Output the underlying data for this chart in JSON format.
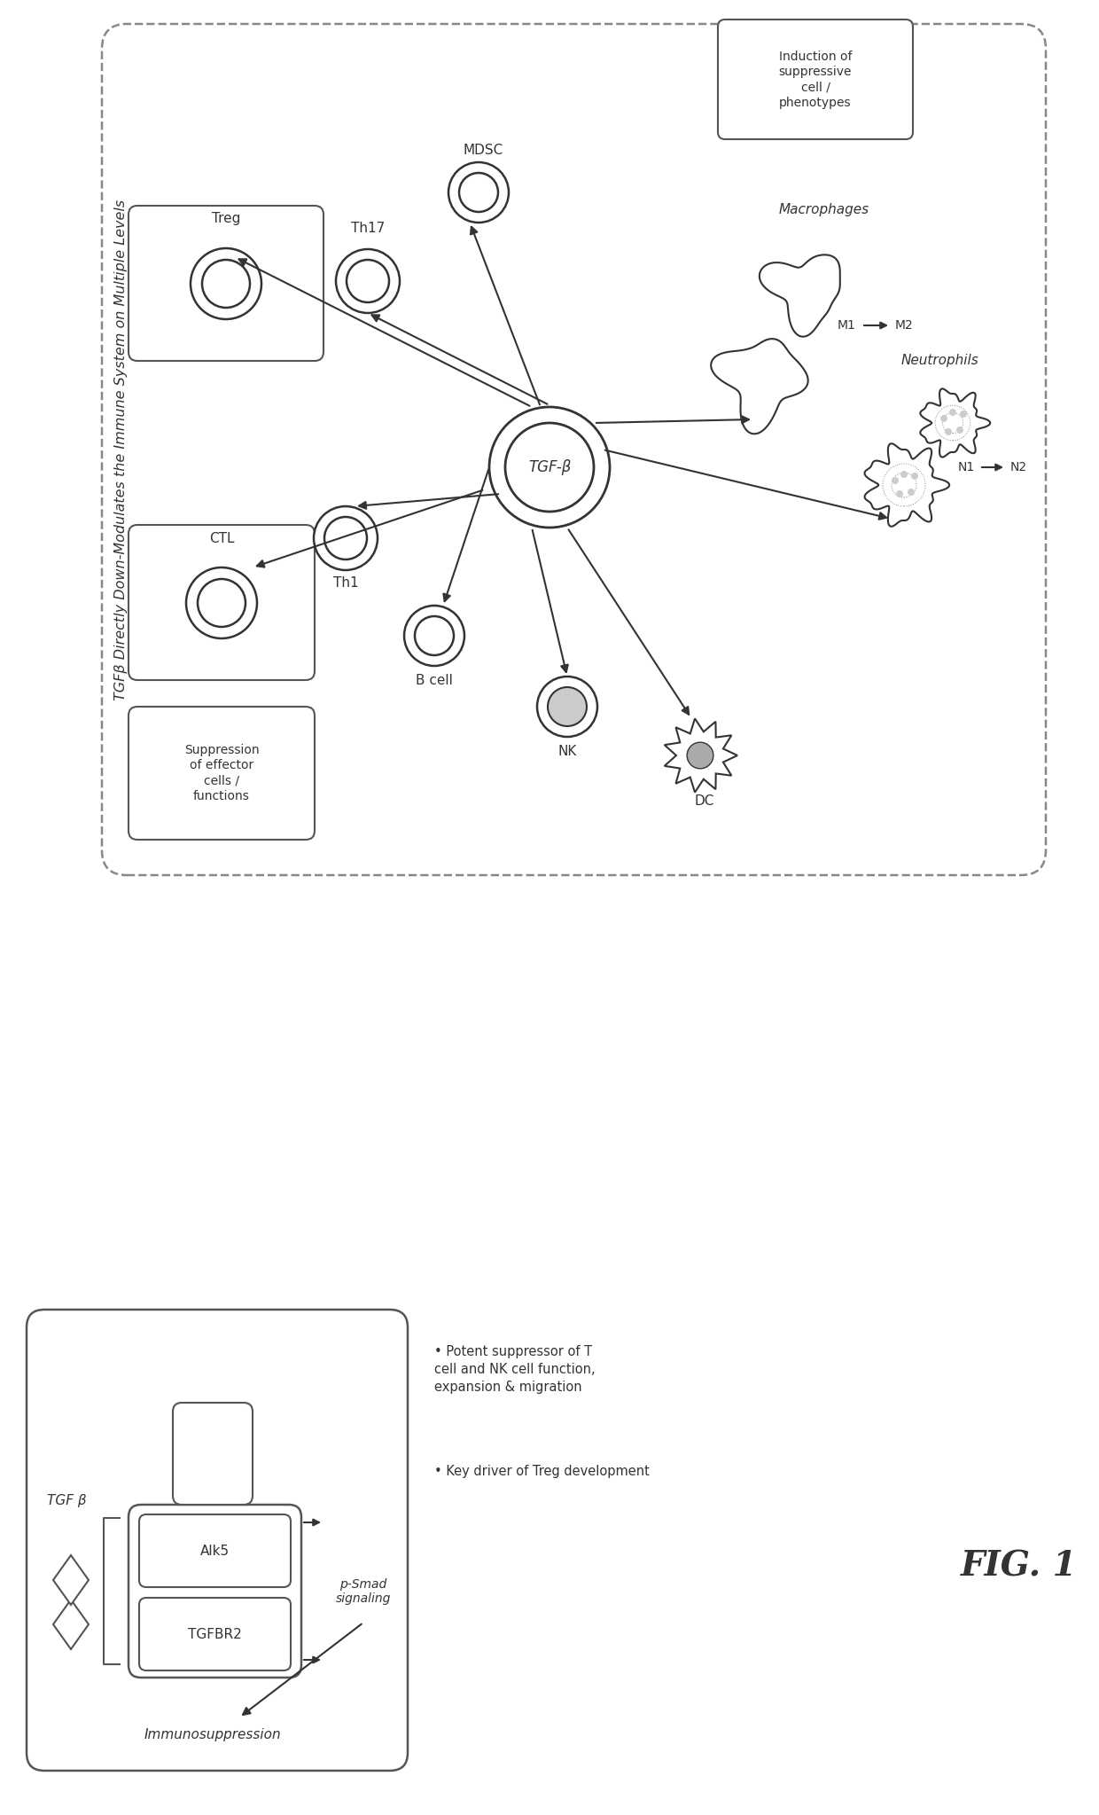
{
  "bg_color": "#ffffff",
  "fig_width": 12.4,
  "fig_height": 20.47,
  "fig1_label": "FIG. 1",
  "title": "TGFβ Directly Down-Modulates the Immune System on Multiple Levels",
  "induction_text": "Induction of\nsuppressive\ncell /\nphenotypes",
  "suppression_text": "Suppression\nof effector\ncells /\nfunctions",
  "center_label": "TGF-β",
  "treg_label": "Treg",
  "th17_label": "Th17",
  "mdsc_label": "MDSC",
  "macrophages_label": "Macrophages",
  "neutrophils_label": "Neutrophils",
  "ctl_label": "CTL",
  "th1_label": "Th1",
  "bcell_label": "B cell",
  "nk_label": "NK",
  "dc_label": "DC",
  "m_label": "M1→M2",
  "n_label": "N1→N2",
  "tgf_label": "TGF β",
  "alk5_label": "Alk5",
  "tgfbr2_label": "TGFBR2",
  "psmad_label": "p-Smad\nsignaling",
  "immuno_label": "Immunosuppression",
  "bullet1": "Potent suppressor of T\ncell and NK cell function,\nexpansion & migration",
  "bullet2": "Key driver of Treg development",
  "border_color": "#555555",
  "line_color": "#333333",
  "dashed_color": "#888888"
}
